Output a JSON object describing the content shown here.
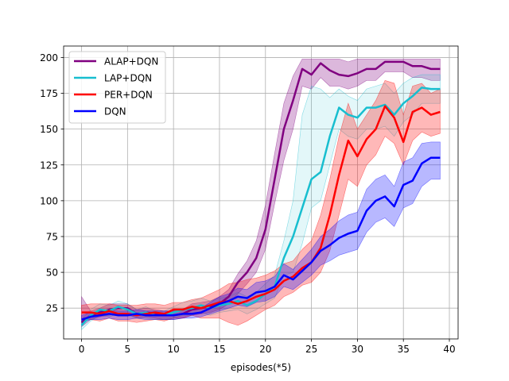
{
  "chart_data": {
    "type": "line",
    "xlabel": "episodes(*5)",
    "ylabel": "",
    "xlim": [
      -1.95,
      40.95
    ],
    "ylim": [
      3.5,
      208
    ],
    "x_ticks": [
      0,
      5,
      10,
      15,
      20,
      25,
      30,
      35,
      40
    ],
    "y_ticks": [
      25,
      50,
      75,
      100,
      125,
      150,
      175,
      200
    ],
    "grid": true,
    "legend_position": "upper-left",
    "x": [
      0,
      1,
      2,
      3,
      4,
      5,
      6,
      7,
      8,
      9,
      10,
      11,
      12,
      13,
      14,
      15,
      16,
      17,
      18,
      19,
      20,
      21,
      22,
      23,
      24,
      25,
      26,
      27,
      28,
      29,
      30,
      31,
      32,
      33,
      34,
      35,
      36,
      37,
      38,
      39
    ],
    "series": [
      {
        "name": "ALAP+DQN",
        "color": "#800080",
        "values": [
          15,
          20,
          22,
          24,
          25,
          25,
          21,
          22,
          21,
          20,
          20,
          21,
          24,
          25,
          26,
          28,
          33,
          43,
          50,
          60,
          80,
          115,
          150,
          170,
          192,
          188,
          196,
          191,
          188,
          187,
          189,
          192,
          192,
          197,
          197,
          197,
          194,
          194,
          192,
          192
        ],
        "lower": [
          12,
          17,
          19,
          20,
          21,
          21,
          18,
          19,
          18,
          17,
          17,
          18,
          20,
          21,
          22,
          24,
          28,
          35,
          42,
          50,
          66,
          98,
          128,
          150,
          180,
          178,
          186,
          180,
          180,
          178,
          180,
          184,
          184,
          190,
          190,
          190,
          186,
          186,
          184,
          184
        ],
        "upper": [
          33,
          23,
          25,
          28,
          28,
          28,
          24,
          25,
          24,
          23,
          23,
          24,
          28,
          29,
          30,
          33,
          38,
          49,
          58,
          72,
          97,
          133,
          168,
          187,
          199,
          199,
          199,
          199,
          199,
          197,
          199,
          199,
          199,
          199,
          199,
          199,
          199,
          199,
          199,
          199
        ]
      },
      {
        "name": "LAP+DQN",
        "color": "#17becf",
        "values": [
          13,
          20,
          24,
          23,
          26,
          24,
          21,
          22,
          20,
          20,
          22,
          24,
          25,
          27,
          25,
          27,
          28,
          30,
          27,
          30,
          35,
          40,
          60,
          75,
          95,
          115,
          120,
          145,
          165,
          160,
          158,
          165,
          165,
          167,
          160,
          168,
          173,
          179,
          178,
          178
        ],
        "lower": [
          10,
          16,
          20,
          19,
          21,
          20,
          18,
          18,
          17,
          17,
          18,
          20,
          20,
          22,
          20,
          22,
          23,
          24,
          21,
          24,
          28,
          32,
          48,
          50,
          70,
          95,
          100,
          125,
          150,
          145,
          143,
          150,
          150,
          152,
          145,
          155,
          160,
          168,
          168,
          168
        ],
        "upper": [
          17,
          24,
          28,
          27,
          30,
          28,
          24,
          26,
          23,
          23,
          26,
          29,
          30,
          32,
          30,
          32,
          33,
          36,
          33,
          36,
          42,
          48,
          72,
          100,
          160,
          180,
          178,
          172,
          178,
          173,
          170,
          178,
          180,
          182,
          175,
          182,
          186,
          188,
          188,
          188
        ]
      },
      {
        "name": "PER+DQN",
        "color": "#ff0000",
        "values": [
          22,
          22,
          21,
          23,
          21,
          21,
          20,
          21,
          22,
          21,
          24,
          24,
          26,
          25,
          27,
          29,
          30,
          28,
          30,
          33,
          35,
          38,
          44,
          47,
          53,
          57,
          67,
          90,
          118,
          142,
          131,
          143,
          150,
          166,
          158,
          141,
          162,
          165,
          160,
          162
        ],
        "lower": [
          17,
          17,
          16,
          18,
          16,
          16,
          15,
          16,
          17,
          16,
          18,
          18,
          20,
          18,
          18,
          18,
          15,
          13,
          16,
          20,
          24,
          27,
          33,
          36,
          41,
          43,
          50,
          65,
          90,
          115,
          110,
          125,
          132,
          145,
          140,
          125,
          142,
          148,
          145,
          147
        ],
        "upper": [
          27,
          28,
          28,
          28,
          27,
          27,
          27,
          28,
          28,
          27,
          29,
          29,
          31,
          32,
          35,
          38,
          42,
          43,
          45,
          46,
          48,
          51,
          56,
          58,
          66,
          72,
          90,
          115,
          145,
          168,
          150,
          160,
          170,
          184,
          182,
          160,
          180,
          182,
          175,
          178
        ]
      },
      {
        "name": "DQN",
        "color": "#0000ff",
        "values": [
          17,
          19,
          20,
          21,
          20,
          20,
          21,
          20,
          20,
          20,
          20,
          21,
          21,
          22,
          25,
          28,
          30,
          33,
          32,
          36,
          37,
          40,
          48,
          45,
          51,
          57,
          65,
          69,
          74,
          77,
          79,
          93,
          100,
          103,
          96,
          111,
          114,
          126,
          130,
          130
        ],
        "lower": [
          15,
          17,
          17,
          18,
          17,
          17,
          18,
          17,
          17,
          17,
          17,
          18,
          18,
          19,
          21,
          23,
          25,
          27,
          26,
          29,
          30,
          33,
          40,
          38,
          43,
          48,
          55,
          58,
          62,
          64,
          66,
          78,
          85,
          88,
          82,
          95,
          98,
          110,
          115,
          115
        ],
        "upper": [
          20,
          22,
          23,
          24,
          23,
          23,
          24,
          23,
          23,
          23,
          23,
          24,
          24,
          25,
          29,
          33,
          35,
          39,
          38,
          43,
          44,
          47,
          56,
          52,
          59,
          66,
          75,
          80,
          86,
          90,
          92,
          108,
          115,
          118,
          110,
          127,
          130,
          140,
          141,
          141
        ]
      }
    ]
  }
}
